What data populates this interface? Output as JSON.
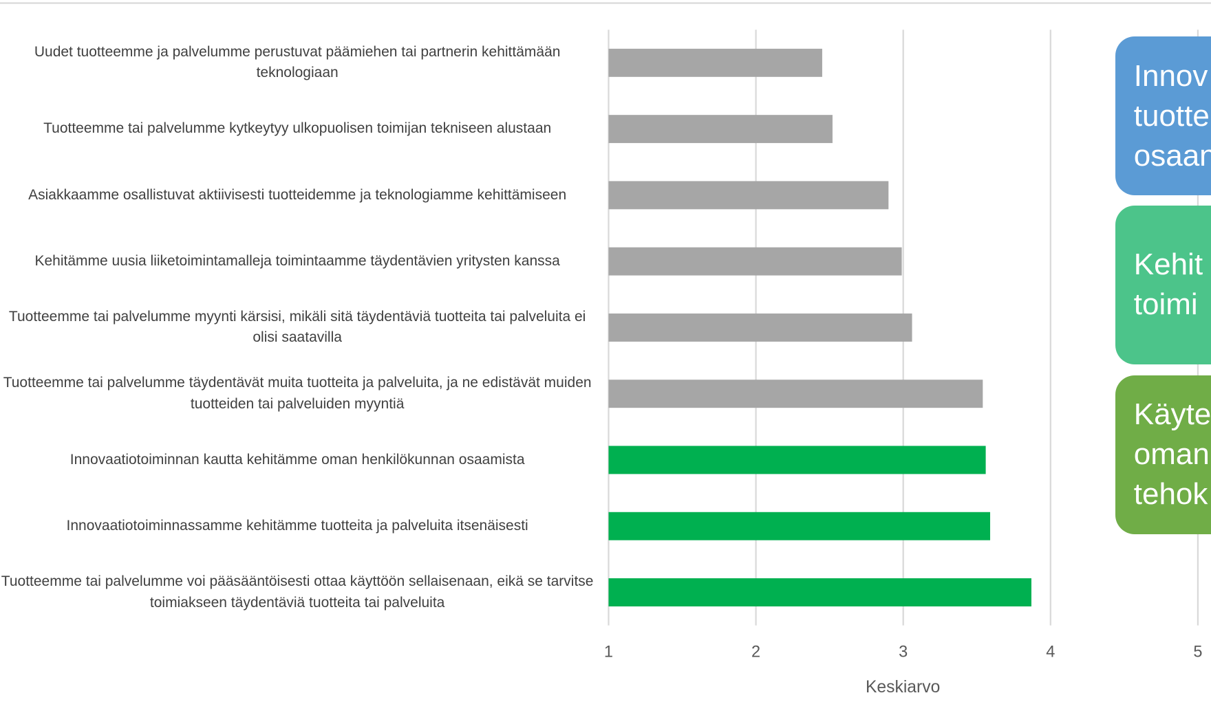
{
  "chart_data": {
    "type": "hbar",
    "categories": [
      "Uudet tuotteemme ja palvelumme perustuvat päämiehen tai partnerin kehittämään teknologiaan",
      "Tuotteemme tai palvelumme kytkeytyy ulkopuolisen toimijan tekniseen alustaan",
      "Asiakkaamme osallistuvat aktiivisesti tuotteidemme ja teknologiamme kehittämiseen",
      "Kehitämme uusia liiketoimintamalleja toimintaamme täydentävien yritysten kanssa",
      "Tuotteemme tai palvelumme myynti kärsisi, mikäli sitä täydentäviä tuotteita tai palveluita ei olisi saatavilla",
      "Tuotteemme tai palvelumme täydentävät muita tuotteita ja palveluita, ja ne edistävät muiden tuotteiden tai palveluiden myyntiä",
      "Innovaatiotoiminnan kautta kehitämme oman henkilökunnan osaamista",
      "Innovaatiotoiminnassamme kehitämme tuotteita ja palveluita itsenäisesti",
      "Tuotteemme tai palvelumme voi pääsääntöisesti ottaa käyttöön sellaisenaan, eikä se tarvitse toimiakseen täydentäviä tuotteita tai palveluita"
    ],
    "values": [
      2.45,
      2.52,
      2.9,
      2.99,
      3.06,
      3.54,
      3.56,
      3.59,
      3.87
    ],
    "colors": [
      "#a6a6a6",
      "#a6a6a6",
      "#a6a6a6",
      "#a6a6a6",
      "#a6a6a6",
      "#a6a6a6",
      "#00b050",
      "#00b050",
      "#00b050"
    ],
    "xlim": [
      1,
      5
    ],
    "xticks": [
      1,
      2,
      3,
      4,
      5
    ],
    "grid": true,
    "xlabel": "Keskiarvo"
  },
  "callouts": [
    {
      "color": "#5b9bd5",
      "lines": [
        "Innov",
        "tuotte",
        "osaan"
      ]
    },
    {
      "color": "#4cc48a",
      "lines": [
        "Kehit",
        "toimi"
      ]
    },
    {
      "color": "#70ad47",
      "lines": [
        "Käyte",
        "oman",
        "tehok"
      ]
    }
  ]
}
